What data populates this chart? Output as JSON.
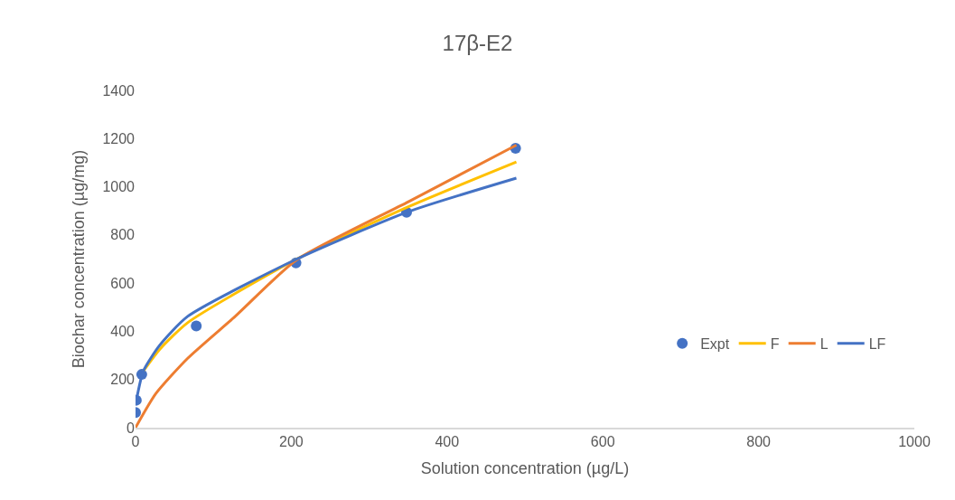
{
  "chart_data": {
    "type": "scatter",
    "title": "17β-E2",
    "xlabel": "Solution concentration (µg/L)",
    "ylabel": "Biochar concentration (µg/mg)",
    "xlim": [
      0,
      1000
    ],
    "xticks": [
      0,
      200,
      400,
      600,
      800,
      1000
    ],
    "ylim": [
      0,
      1400
    ],
    "yticks": [
      0,
      200,
      400,
      600,
      800,
      1000,
      1200,
      1400
    ],
    "legend": "right",
    "series": [
      {
        "name": "Expt",
        "marker": "circle",
        "color": "#4472c4",
        "x": [
          0,
          1,
          8,
          78,
          206,
          348,
          488
        ],
        "values": [
          63,
          114,
          221,
          422,
          684,
          894,
          1160
        ]
      },
      {
        "name": "F",
        "type": "line",
        "color": "#ffc000",
        "x": [
          10,
          31,
          67,
          207,
          351,
          489
        ],
        "values": [
          235,
          325,
          436,
          700,
          918,
          1103
        ]
      },
      {
        "name": "L",
        "type": "line",
        "color": "#ed7d31",
        "x": [
          0,
          26,
          67,
          128,
          207,
          351,
          489
        ],
        "values": [
          0,
          141,
          288,
          462,
          697,
          939,
          1173
        ]
      },
      {
        "name": "LF",
        "type": "line",
        "color": "#4472c4",
        "x": [
          1,
          10,
          31,
          67,
          207,
          348,
          489
        ],
        "values": [
          112,
          235,
          342,
          462,
          700,
          894,
          1036
        ]
      }
    ]
  }
}
